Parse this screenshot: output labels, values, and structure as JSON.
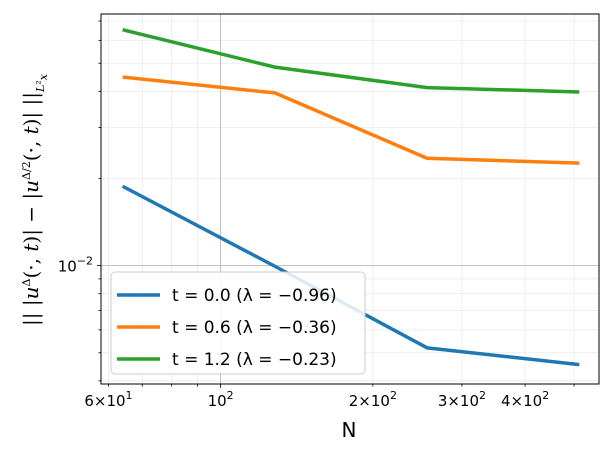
{
  "chart_data": {
    "type": "line",
    "xscale": "log",
    "yscale": "log",
    "xlabel": "N",
    "ylabel": "|| |u^Δ(·, t)| − |u^{Δ/2}(·, t)| ||_{L²_x}",
    "xlim": [
      58,
      560
    ],
    "ylim": [
      0.0039,
      0.074
    ],
    "x": [
      64,
      128,
      256,
      512
    ],
    "grid": true,
    "legend_position": "lower-left",
    "xticks": [
      {
        "value": 60,
        "label": "6×10",
        "exp": "1"
      },
      {
        "value": 100,
        "label": "10",
        "exp": "2"
      },
      {
        "value": 200,
        "label": "2×10",
        "exp": "2"
      },
      {
        "value": 300,
        "label": "3×10",
        "exp": "2"
      },
      {
        "value": 400,
        "label": "4×10",
        "exp": "2"
      }
    ],
    "yticks": [
      {
        "value": 0.01,
        "label": "10",
        "exp": "−2"
      }
    ],
    "series": [
      {
        "name": "t = 0.0 (λ = −0.96)",
        "color": "#1f77b4",
        "values": [
          0.0188,
          0.00995,
          0.0052,
          0.00455
        ]
      },
      {
        "name": "t = 0.6 (λ = −0.36)",
        "color": "#ff7f0e",
        "values": [
          0.0448,
          0.0395,
          0.0235,
          0.0226
        ]
      },
      {
        "name": "t = 1.2 (λ = −0.23)",
        "color": "#2ca02c",
        "values": [
          0.0653,
          0.0485,
          0.0412,
          0.0398
        ]
      }
    ]
  }
}
